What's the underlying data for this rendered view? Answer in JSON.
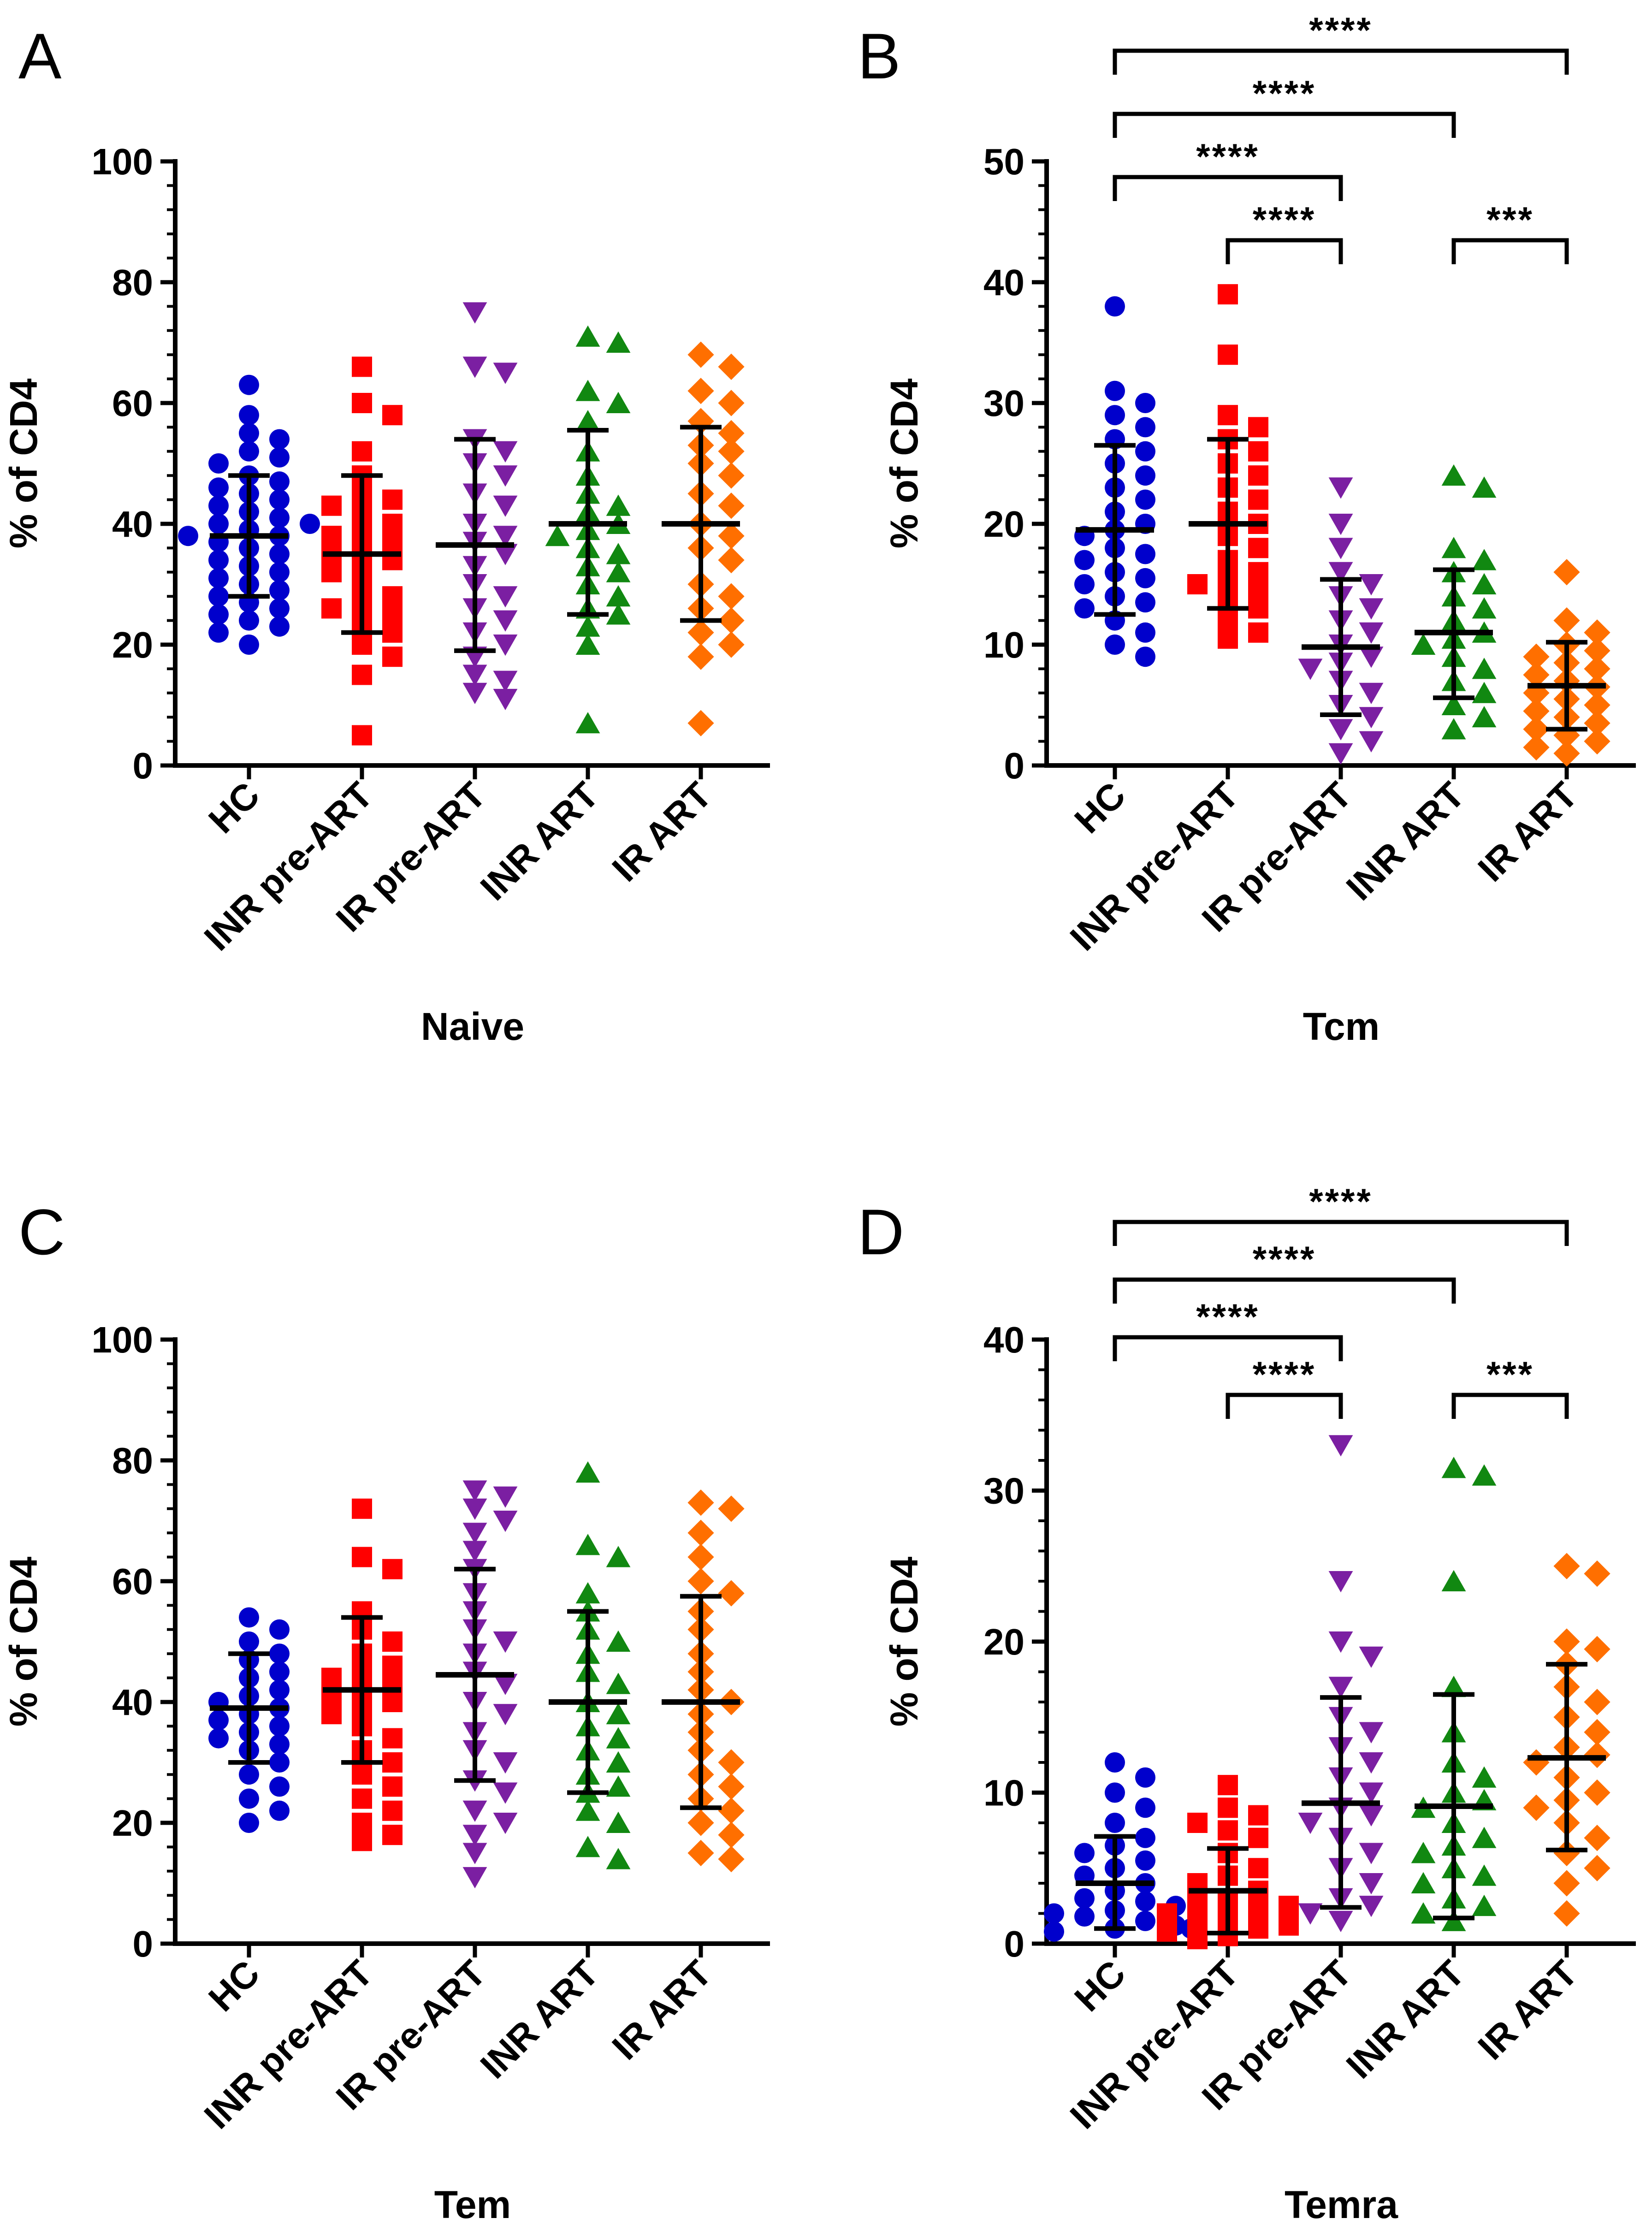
{
  "group_colors": {
    "HC": "#0000cc",
    "INR pre-ART": "#ff0000",
    "IR pre-ART": "#7b1fa2",
    "INR ART": "#118811",
    "IR ART": "#ff6f00"
  },
  "chart_data": [
    {
      "type": "scatter",
      "panel": "A",
      "title": "Naive",
      "xlabel": "Naive",
      "ylabel": "% of CD4",
      "ylim": [
        0,
        100
      ],
      "yticks": [
        0,
        20,
        40,
        60,
        80,
        100
      ],
      "yticklabels": [
        "0",
        "20",
        "40",
        "60",
        "80",
        "100"
      ],
      "categories": [
        "HC",
        "INR pre-ART",
        "IR pre-ART",
        "INR ART",
        "IR ART"
      ],
      "series": [
        {
          "name": "HC",
          "marker": "circle",
          "mean": 38,
          "sd_low": 28,
          "sd_high": 48,
          "values": [
            63,
            58,
            55,
            54,
            52,
            51,
            50,
            48,
            47,
            46,
            45,
            44,
            43,
            42,
            41,
            40,
            40,
            39,
            38,
            38,
            37,
            36,
            35,
            34,
            33,
            32,
            31,
            30,
            29,
            28,
            27,
            26,
            25,
            24,
            23,
            22,
            20
          ]
        },
        {
          "name": "INR pre-ART",
          "marker": "square",
          "mean": 35,
          "sd_low": 22,
          "sd_high": 48,
          "values": [
            66,
            60,
            58,
            52,
            48,
            45,
            44,
            43,
            42,
            40,
            39,
            38,
            37,
            36,
            35,
            34,
            33,
            32,
            30,
            28,
            27,
            26,
            25,
            24,
            22,
            20,
            18,
            15,
            5
          ]
        },
        {
          "name": "IR pre-ART",
          "marker": "triangle-down",
          "mean": 36.5,
          "sd_low": 19,
          "sd_high": 54,
          "values": [
            75,
            66,
            65,
            54,
            52,
            50,
            48,
            45,
            43,
            40,
            38,
            37,
            35,
            33,
            30,
            28,
            26,
            24,
            22,
            20,
            18,
            15,
            14,
            12,
            11
          ]
        },
        {
          "name": "INR ART",
          "marker": "triangle-up",
          "mean": 40,
          "sd_low": 25,
          "sd_high": 55.5,
          "values": [
            71,
            70,
            62,
            60,
            57,
            52,
            48,
            45,
            43,
            42,
            40,
            39,
            38,
            36,
            35,
            33,
            32,
            30,
            28,
            26,
            25,
            23,
            20,
            7
          ]
        },
        {
          "name": "IR ART",
          "marker": "diamond",
          "mean": 40,
          "sd_low": 24,
          "sd_high": 56,
          "values": [
            68,
            66,
            62,
            60,
            57,
            55,
            53,
            52,
            50,
            48,
            45,
            43,
            40,
            38,
            36,
            34,
            30,
            28,
            26,
            24,
            22,
            20,
            18,
            7
          ]
        }
      ],
      "significance": []
    },
    {
      "type": "scatter",
      "panel": "B",
      "title": "Tcm",
      "xlabel": "Tcm",
      "ylabel": "% of CD4",
      "ylim": [
        0,
        50
      ],
      "yticks": [
        0,
        10,
        20,
        30,
        40,
        50
      ],
      "yticklabels": [
        "0",
        "10",
        "20",
        "30",
        "40",
        "50"
      ],
      "categories": [
        "HC",
        "INR pre-ART",
        "IR pre-ART",
        "INR ART",
        "IR ART"
      ],
      "series": [
        {
          "name": "HC",
          "marker": "circle",
          "mean": 19.5,
          "sd_low": 12.5,
          "sd_high": 26.5,
          "values": [
            38,
            31,
            30,
            29,
            28,
            27,
            26,
            25,
            24,
            23,
            22,
            21,
            20,
            19.5,
            19,
            18,
            17.5,
            17,
            16,
            15.5,
            15,
            14,
            13.5,
            13,
            12,
            11,
            10,
            9
          ]
        },
        {
          "name": "INR pre-ART",
          "marker": "square",
          "mean": 20,
          "sd_low": 13,
          "sd_high": 27,
          "values": [
            39,
            34,
            29,
            28,
            27,
            26,
            25,
            24,
            23,
            22,
            21,
            20,
            19,
            18,
            17,
            16,
            15.5,
            15,
            14.5,
            14,
            13,
            12,
            11,
            10.5
          ]
        },
        {
          "name": "IR pre-ART",
          "marker": "triangle-down",
          "mean": 9.8,
          "sd_low": 4.2,
          "sd_high": 15.4,
          "values": [
            23,
            20,
            18,
            16,
            15,
            14,
            13,
            12,
            11,
            10,
            9,
            8.5,
            8,
            7,
            6,
            5,
            4,
            3,
            2,
            1
          ]
        },
        {
          "name": "INR ART",
          "marker": "triangle-up",
          "mean": 11,
          "sd_low": 5.6,
          "sd_high": 16.2,
          "values": [
            24,
            23,
            18,
            17,
            16,
            15,
            14,
            13,
            12,
            11,
            10.5,
            10,
            9,
            8,
            7,
            6,
            5,
            4,
            3
          ]
        },
        {
          "name": "IR ART",
          "marker": "diamond",
          "mean": 6.6,
          "sd_low": 3,
          "sd_high": 10.2,
          "values": [
            16,
            12,
            11,
            10,
            9.5,
            9,
            8.5,
            8,
            7.5,
            7,
            6.5,
            6,
            5.5,
            5,
            4.5,
            4,
            3.5,
            3,
            2.5,
            2,
            1.5,
            1
          ]
        }
      ],
      "significance": [
        {
          "from": "HC",
          "to": "IR ART",
          "label": "****",
          "level": 0
        },
        {
          "from": "HC",
          "to": "INR ART",
          "label": "****",
          "level": 1
        },
        {
          "from": "HC",
          "to": "IR pre-ART",
          "label": "****",
          "level": 2
        },
        {
          "from": "INR pre-ART",
          "to": "IR pre-ART",
          "label": "****",
          "level": 3
        },
        {
          "from": "INR ART",
          "to": "IR ART",
          "label": "***",
          "level": 3
        }
      ]
    },
    {
      "type": "scatter",
      "panel": "C",
      "title": "Tem",
      "xlabel": "Tem",
      "ylabel": "% of CD4",
      "ylim": [
        0,
        100
      ],
      "yticks": [
        0,
        20,
        40,
        60,
        80,
        100
      ],
      "yticklabels": [
        "0",
        "20",
        "40",
        "60",
        "80",
        "100"
      ],
      "categories": [
        "HC",
        "INR pre-ART",
        "IR pre-ART",
        "INR ART",
        "IR ART"
      ],
      "series": [
        {
          "name": "HC",
          "marker": "circle",
          "mean": 39,
          "sd_low": 30,
          "sd_high": 48,
          "values": [
            54,
            52,
            50,
            48,
            47,
            45,
            44,
            42,
            41,
            40,
            39,
            38,
            37,
            36,
            35,
            34,
            33,
            32,
            30,
            28,
            26,
            24,
            22,
            20
          ]
        },
        {
          "name": "INR pre-ART",
          "marker": "square",
          "mean": 42,
          "sd_low": 30,
          "sd_high": 54,
          "values": [
            72,
            64,
            62,
            55,
            52,
            50,
            48,
            46,
            45,
            44,
            43,
            42,
            41,
            40,
            39,
            38,
            36,
            34,
            32,
            30,
            28,
            26,
            24,
            22,
            20,
            18,
            17
          ]
        },
        {
          "name": "IR pre-ART",
          "marker": "triangle-down",
          "mean": 44.5,
          "sd_low": 27,
          "sd_high": 62,
          "values": [
            75,
            74,
            72,
            70,
            68,
            65,
            62,
            58,
            55,
            52,
            50,
            48,
            45,
            43,
            40,
            38,
            35,
            32,
            30,
            27,
            25,
            22,
            20,
            18,
            15,
            11
          ]
        },
        {
          "name": "INR ART",
          "marker": "triangle-up",
          "mean": 40,
          "sd_low": 25,
          "sd_high": 55,
          "values": [
            78,
            66,
            64,
            58,
            55,
            52,
            50,
            48,
            45,
            43,
            40,
            38,
            36,
            34,
            32,
            30,
            28,
            26,
            25,
            22,
            20,
            16,
            14
          ]
        },
        {
          "name": "IR ART",
          "marker": "diamond",
          "mean": 40,
          "sd_low": 22.5,
          "sd_high": 57.5,
          "values": [
            73,
            72,
            68,
            64,
            60,
            58,
            55,
            52,
            48,
            45,
            42,
            40,
            38,
            35,
            32,
            30,
            28,
            26,
            24,
            22,
            20,
            18,
            15,
            14
          ]
        }
      ],
      "significance": []
    },
    {
      "type": "scatter",
      "panel": "D",
      "title": "Temra",
      "xlabel": "Temra",
      "ylabel": "% of CD4",
      "ylim": [
        0,
        40
      ],
      "yticks": [
        0,
        10,
        20,
        30,
        40
      ],
      "yticklabels": [
        "0",
        "10",
        "20",
        "30",
        "40"
      ],
      "categories": [
        "HC",
        "INR pre-ART",
        "IR pre-ART",
        "INR ART",
        "IR ART"
      ],
      "series": [
        {
          "name": "HC",
          "marker": "circle",
          "mean": 4,
          "sd_low": 1,
          "sd_high": 7.1,
          "values": [
            12,
            11,
            10,
            9,
            8,
            7,
            6.5,
            6,
            5.5,
            5,
            4.5,
            4,
            3.5,
            3,
            2.8,
            2.5,
            2.2,
            2,
            1.8,
            1.5,
            1.2,
            1,
            1,
            0.8
          ]
        },
        {
          "name": "INR pre-ART",
          "marker": "square",
          "mean": 3.5,
          "sd_low": 0.7,
          "sd_high": 6.3,
          "values": [
            10.5,
            9,
            8.5,
            8,
            7.5,
            7,
            6,
            5,
            4.5,
            4,
            3.5,
            3,
            2.8,
            2.5,
            2.2,
            2,
            1.8,
            1.5,
            1.2,
            1,
            0.8,
            0.5,
            0.3
          ]
        },
        {
          "name": "IR pre-ART",
          "marker": "triangle-down",
          "mean": 9.3,
          "sd_low": 2.4,
          "sd_high": 16.3,
          "values": [
            33,
            24,
            20,
            19,
            17,
            15,
            14,
            13,
            12,
            11,
            10,
            9,
            8.5,
            8,
            7,
            6,
            5,
            4,
            3,
            2.5,
            2,
            1.5
          ]
        },
        {
          "name": "INR ART",
          "marker": "triangle-up",
          "mean": 9.1,
          "sd_low": 1.7,
          "sd_high": 16.5,
          "values": [
            31.5,
            31,
            24,
            17,
            14,
            12,
            11,
            10,
            9.5,
            9,
            8,
            7,
            6.5,
            6,
            5,
            4.5,
            4,
            3,
            2.5,
            2,
            1.5
          ]
        },
        {
          "name": "IR ART",
          "marker": "diamond",
          "mean": 12.3,
          "sd_low": 6.2,
          "sd_high": 18.5,
          "values": [
            25,
            24.5,
            20,
            19.5,
            18.5,
            17,
            16,
            15,
            14,
            13,
            12.5,
            12,
            11,
            10,
            9.5,
            9,
            8,
            7,
            6,
            5,
            4,
            2
          ]
        }
      ],
      "significance": [
        {
          "from": "HC",
          "to": "IR ART",
          "label": "****",
          "level": 0
        },
        {
          "from": "HC",
          "to": "INR ART",
          "label": "****",
          "level": 1
        },
        {
          "from": "HC",
          "to": "IR pre-ART",
          "label": "****",
          "level": 2
        },
        {
          "from": "INR pre-ART",
          "to": "IR pre-ART",
          "label": "****",
          "level": 3
        },
        {
          "from": "INR ART",
          "to": "IR ART",
          "label": "***",
          "level": 3
        }
      ]
    }
  ]
}
